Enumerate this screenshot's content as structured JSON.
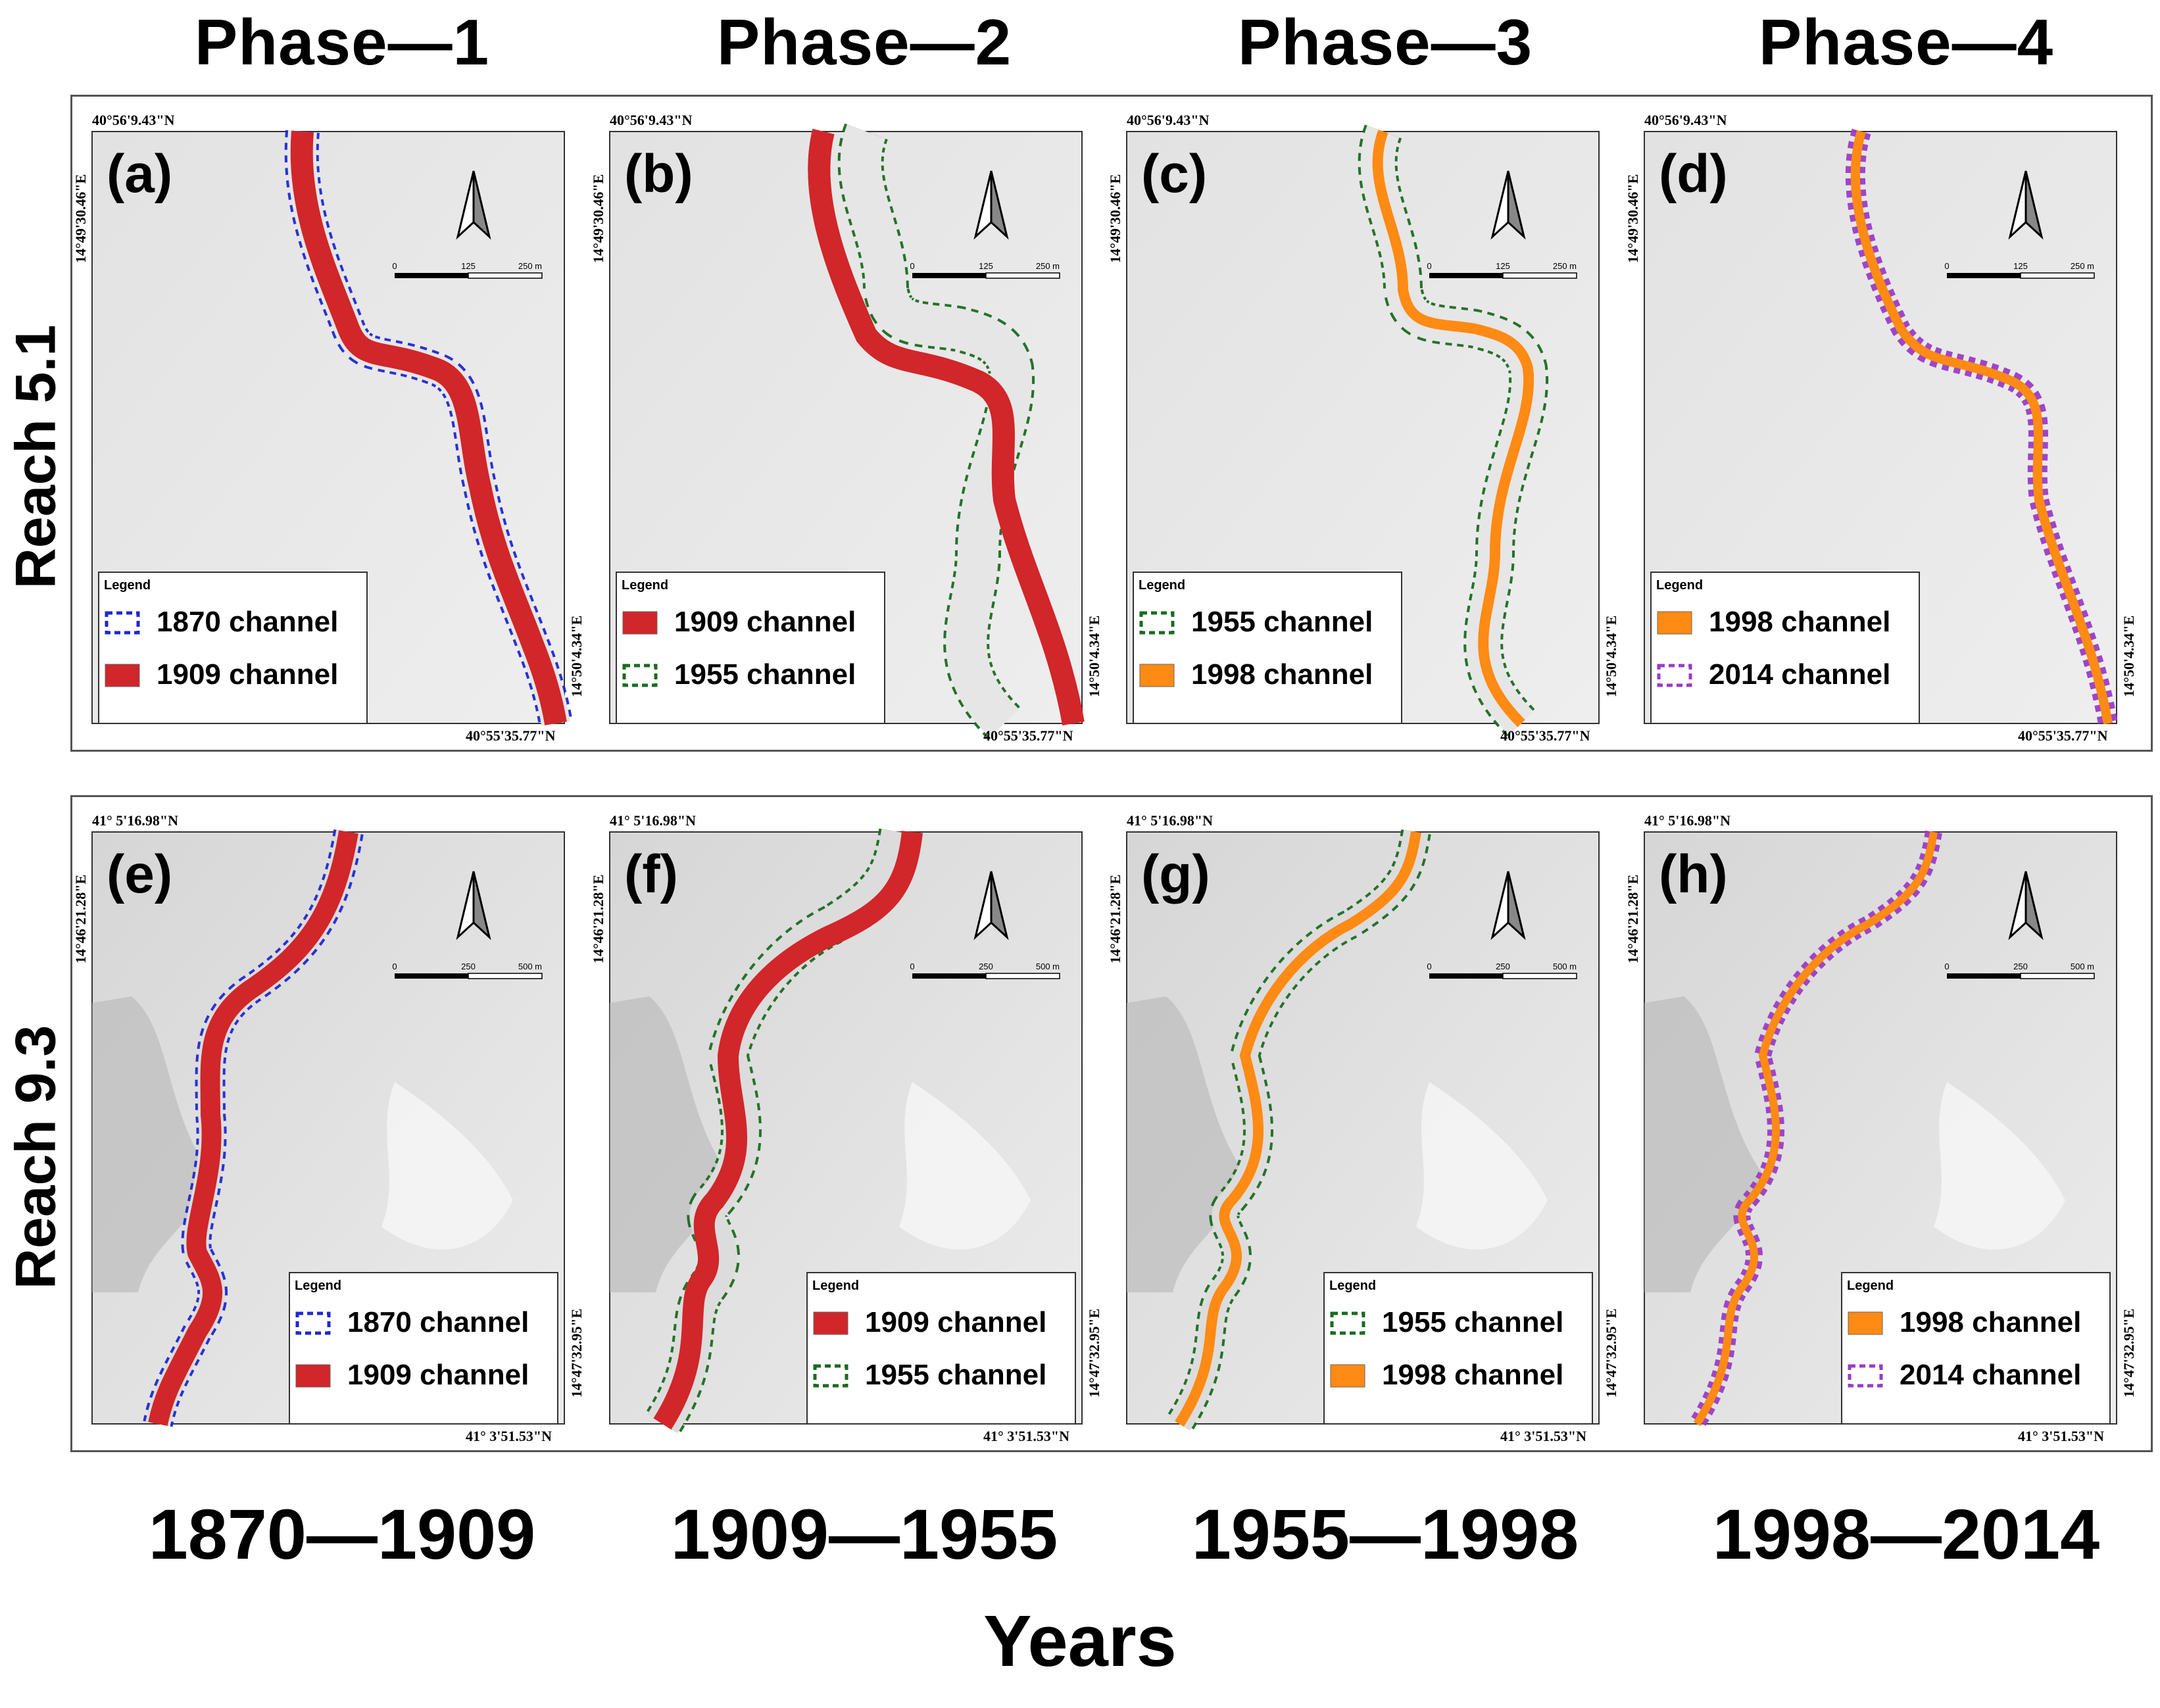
{
  "phases": [
    "Phase—1",
    "Phase—2",
    "Phase—3",
    "Phase—4"
  ],
  "periods": [
    "1870—1909",
    "1909—1955",
    "1955—1998",
    "1998—2014"
  ],
  "x_axis_label": "Years",
  "legend_title": "Legend",
  "colors": {
    "1870": "#1e28d2",
    "1909": "#d1262a",
    "1955": "#1a6b1f",
    "1998": "#ff8a14",
    "2014": "#9b3bc7"
  },
  "rows": [
    {
      "label": "Reach 5.1",
      "coords": {
        "top": "40°56'9.43\"N",
        "left": "14°49'30.46\"E",
        "bottom": "40°55'35.77\"N",
        "right": "14°50'4.34\"E"
      },
      "scale": [
        "0",
        "125",
        "250 m"
      ],
      "panels": [
        {
          "tag": "(a)",
          "legend": [
            {
              "text": "1870 channel",
              "year": "1870",
              "style": "dashed"
            },
            {
              "text": "1909 channel",
              "year": "1909",
              "style": "filled"
            }
          ]
        },
        {
          "tag": "(b)",
          "legend": [
            {
              "text": "1909 channel",
              "year": "1909",
              "style": "filled"
            },
            {
              "text": "1955 channel",
              "year": "1955",
              "style": "dashed"
            }
          ]
        },
        {
          "tag": "(c)",
          "legend": [
            {
              "text": "1955 channel",
              "year": "1955",
              "style": "dashed"
            },
            {
              "text": "1998 channel",
              "year": "1998",
              "style": "filled"
            }
          ]
        },
        {
          "tag": "(d)",
          "legend": [
            {
              "text": "1998 channel",
              "year": "1998",
              "style": "filled"
            },
            {
              "text": "2014 channel",
              "year": "2014",
              "style": "dashed"
            }
          ]
        }
      ]
    },
    {
      "label": "Reach 9.3",
      "coords": {
        "top": "41° 5'16.98\"N",
        "left": "14°46'21.28\"E",
        "bottom": "41° 3'51.53\"N",
        "right": "14°47'32.95\"E"
      },
      "scale": [
        "0",
        "250",
        "500 m"
      ],
      "panels": [
        {
          "tag": "(e)",
          "legend": [
            {
              "text": "1870 channel",
              "year": "1870",
              "style": "dashed"
            },
            {
              "text": "1909 channel",
              "year": "1909",
              "style": "filled"
            }
          ]
        },
        {
          "tag": "(f)",
          "legend": [
            {
              "text": "1909 channel",
              "year": "1909",
              "style": "filled"
            },
            {
              "text": "1955 channel",
              "year": "1955",
              "style": "dashed"
            }
          ]
        },
        {
          "tag": "(g)",
          "legend": [
            {
              "text": "1955 channel",
              "year": "1955",
              "style": "dashed"
            },
            {
              "text": "1998 channel",
              "year": "1998",
              "style": "filled"
            }
          ]
        },
        {
          "tag": "(h)",
          "legend": [
            {
              "text": "1998 channel",
              "year": "1998",
              "style": "filled"
            },
            {
              "text": "2014 channel",
              "year": "2014",
              "style": "dashed"
            }
          ]
        }
      ]
    }
  ]
}
